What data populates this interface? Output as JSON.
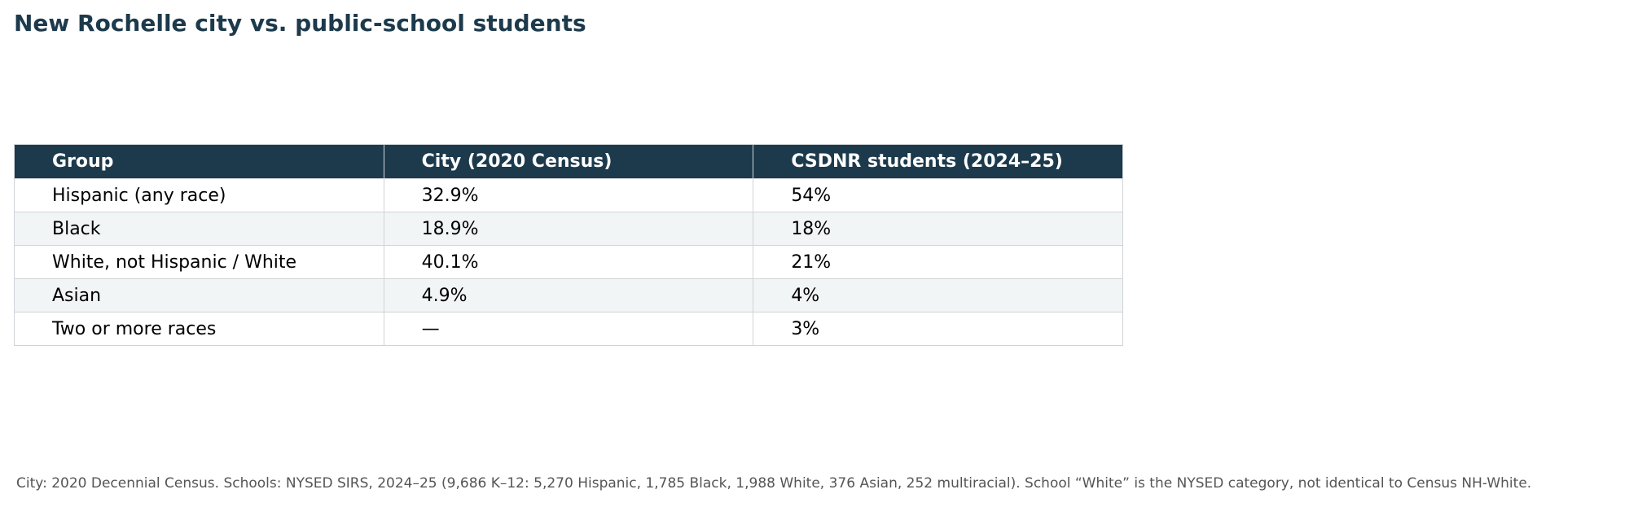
{
  "title": "New Rochelle city vs. public-school students",
  "table": {
    "columns": [
      "Group",
      "City (2020 Census)",
      "CSDNR students (2024–25)"
    ],
    "rows": [
      [
        "Hispanic (any race)",
        "32.9%",
        "54%"
      ],
      [
        "Black",
        "18.9%",
        "18%"
      ],
      [
        "White, not Hispanic / White",
        "40.1%",
        "21%"
      ],
      [
        "Asian",
        "4.9%",
        "4%"
      ],
      [
        "Two or more races",
        "—",
        "3%"
      ]
    ]
  },
  "footnote": "City: 2020 Decennial Census. Schools: NYSED SIRS, 2024–25 (9,686 K–12: 5,270 Hispanic, 1,785 Black, 1,988 White, 376 Asian, 252 multiracial). School “White” is the NYSED category, not identical to Census NH-White."
}
